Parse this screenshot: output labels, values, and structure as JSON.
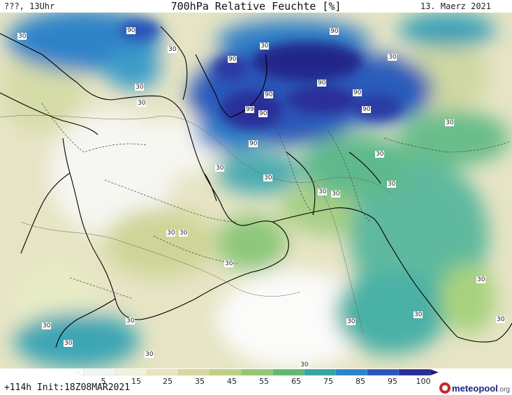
{
  "header": {
    "left": "???, 13Uhr",
    "title": "700hPa Relative Feuchte [%]",
    "date": "13. Maerz 2021"
  },
  "footer": {
    "init": "+114h  Init:18Z08MAR2021",
    "logo_main": "meteopool",
    "logo_suffix": ".org"
  },
  "colorbar": {
    "ticks": [
      "5",
      "15",
      "25",
      "35",
      "45",
      "55",
      "65",
      "75",
      "85",
      "95",
      "100"
    ],
    "colors": [
      "#ffffff",
      "#f3f3f0",
      "#f2f2dc",
      "#e8e6c0",
      "#d6d79c",
      "#bcd183",
      "#93c775",
      "#5fb96e",
      "#33a6a4",
      "#2b86c8",
      "#2c55b8",
      "#2a2e98",
      "#231b6e"
    ]
  },
  "contour_labels": {
    "l1": "30",
    "l2": "90",
    "l3": "30",
    "l4": "30",
    "l5": "90",
    "l6": "30",
    "l7": "90",
    "l8": "30",
    "l9": "90",
    "l10": "90",
    "l11": "90",
    "l12": "99",
    "l13": "90",
    "l14": "90",
    "l15": "30",
    "l16": "90",
    "l17": "30",
    "l18": "30",
    "l19": "30",
    "l20": "30",
    "l21": "30",
    "l22": "30",
    "l23": "30",
    "l24": "30",
    "l25": "30",
    "l26": "30",
    "l27": "30",
    "l28": "30",
    "l29": "30",
    "l30": "30",
    "l31": "30",
    "l32": "30",
    "l33": "30",
    "l34": "30",
    "l35": "30"
  }
}
